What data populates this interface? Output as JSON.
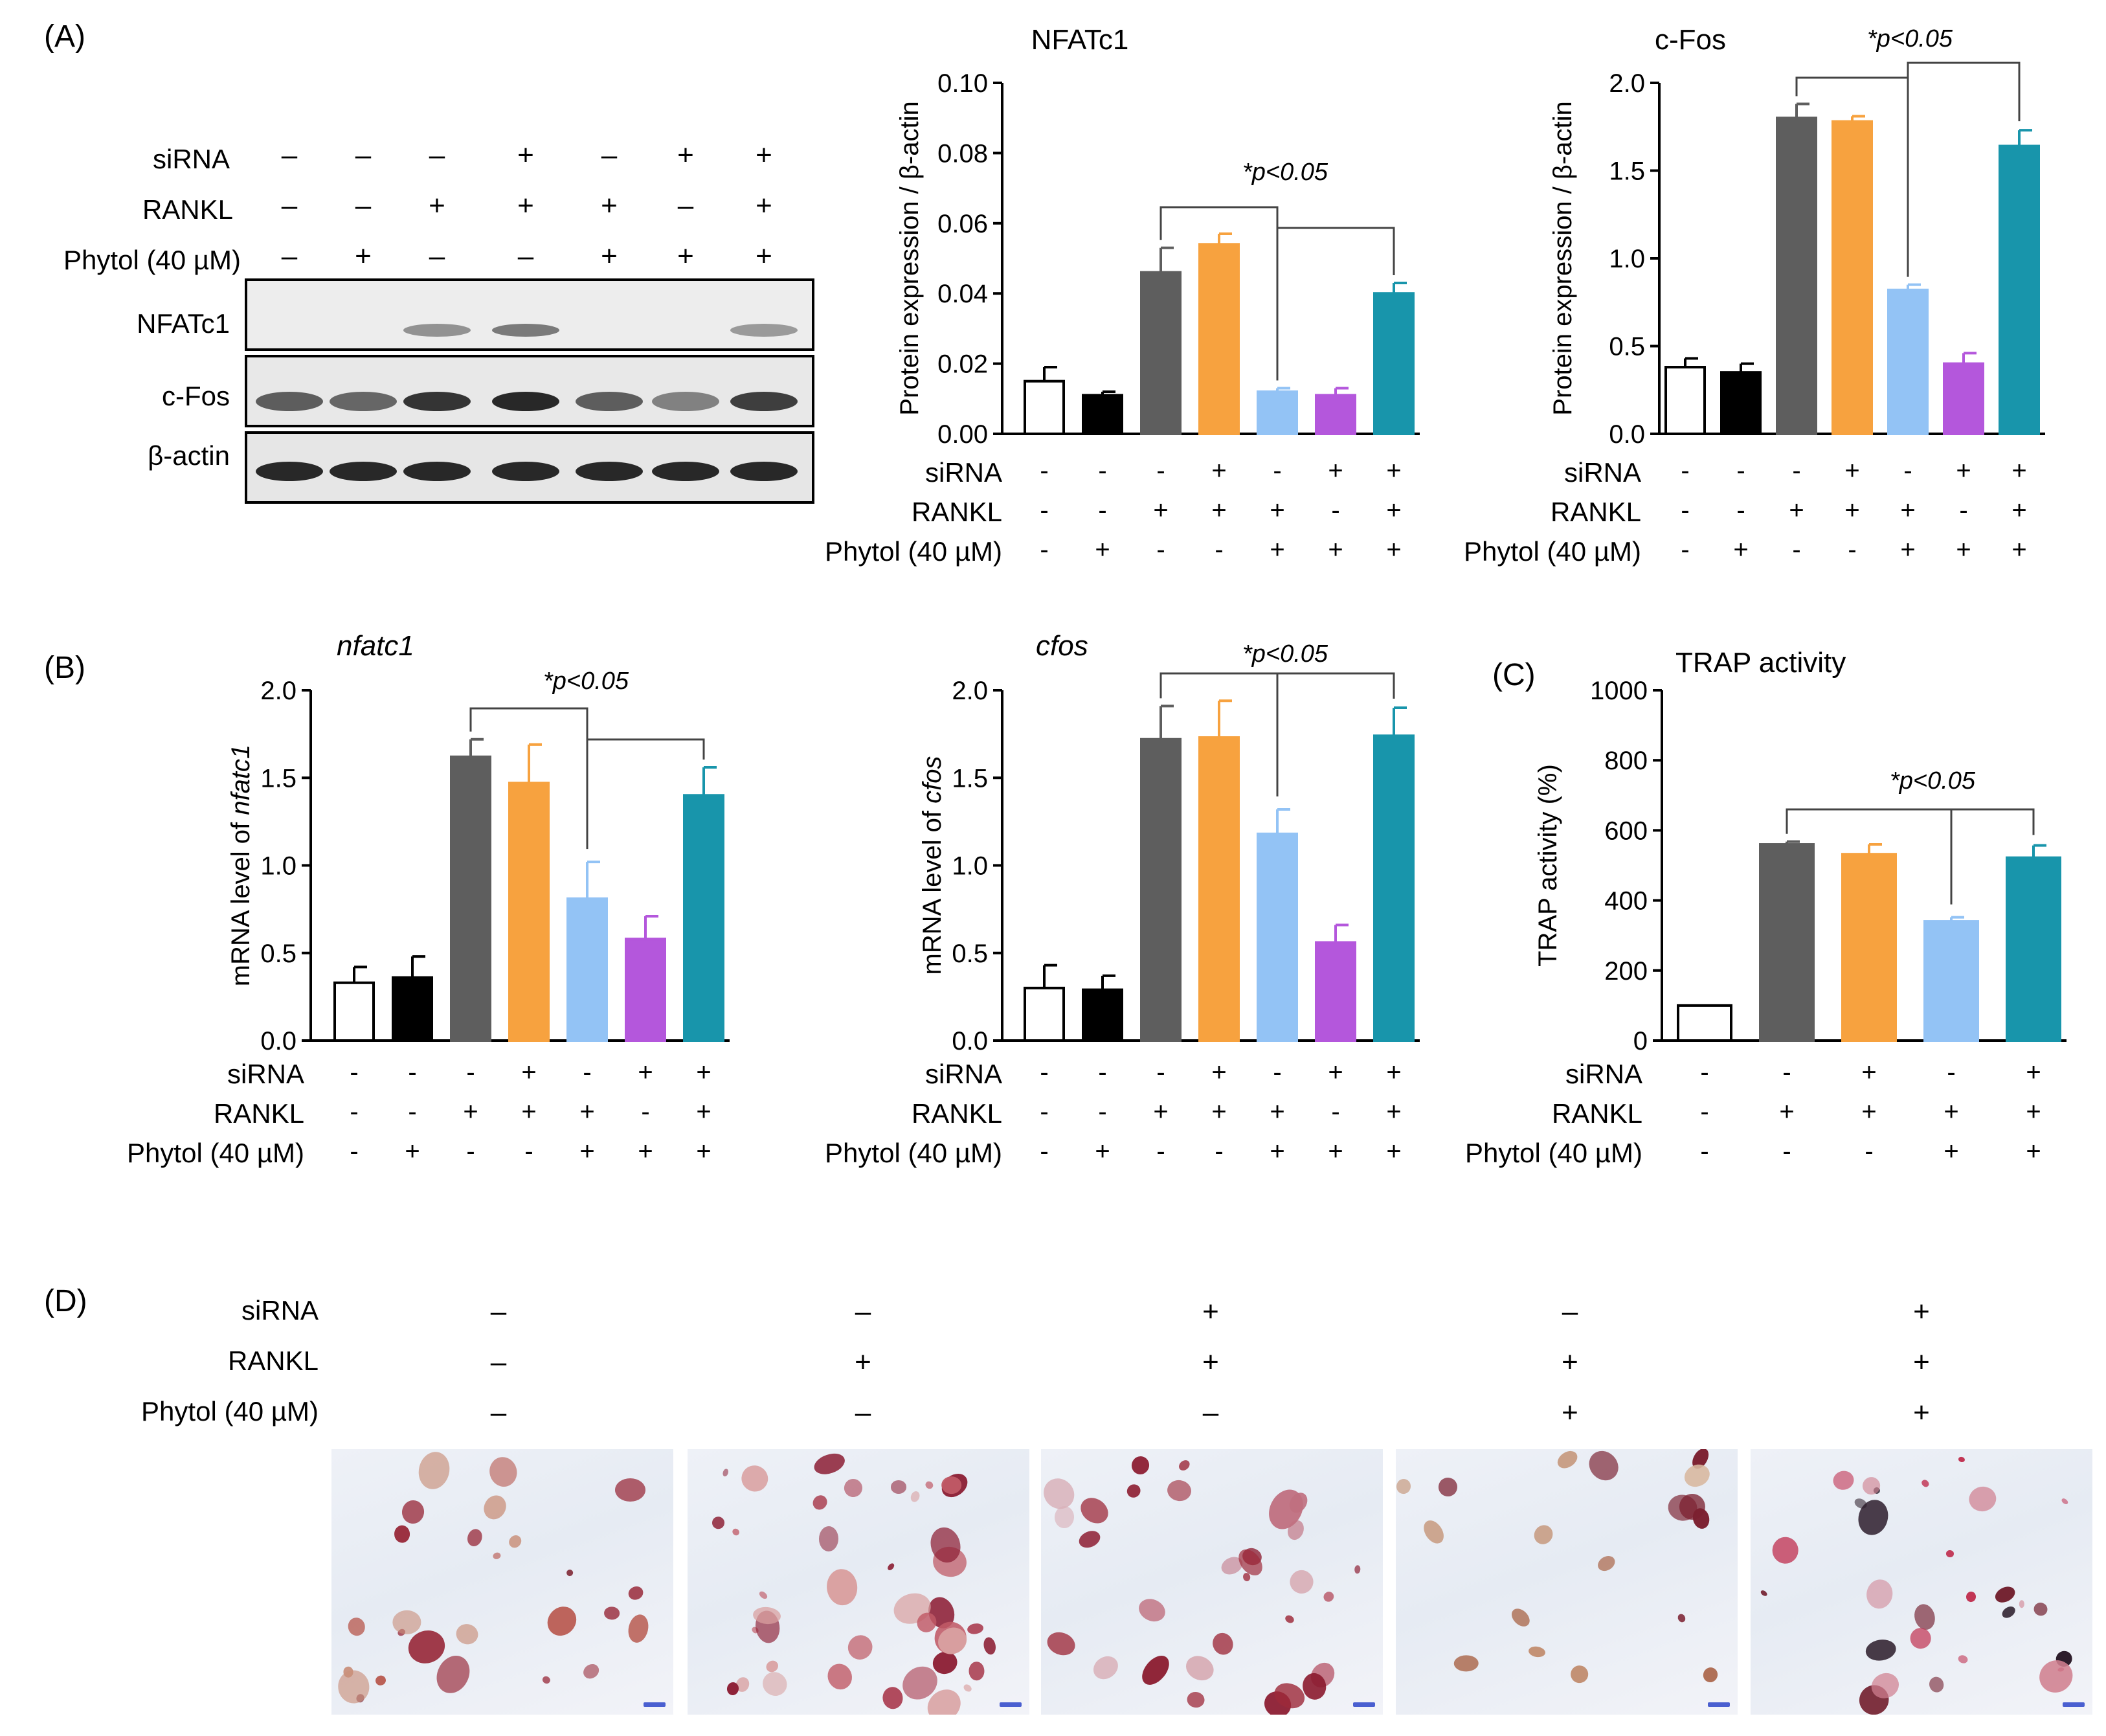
{
  "colors": {
    "group1": "#ffffff",
    "group2": "#000000",
    "group3": "#5e5e5e",
    "group4": "#f7a23f",
    "group5": "#93c3f5",
    "group6": "#b457dc",
    "group7": "#1895ab"
  },
  "cond_labels": {
    "sirna": "siRNA",
    "rankl": "RANKL",
    "phytol": "Phytol (40 µM)"
  },
  "conditions7": {
    "sirna": [
      "-",
      "-",
      "-",
      "+",
      "-",
      "+",
      "+"
    ],
    "rankl": [
      "-",
      "-",
      "+",
      "+",
      "+",
      "-",
      "+"
    ],
    "phytol": [
      "-",
      "+",
      "-",
      "-",
      "+",
      "+",
      "+"
    ]
  },
  "conditions5": {
    "sirna": [
      "-",
      "-",
      "+",
      "-",
      "+"
    ],
    "rankl": [
      "-",
      "+",
      "+",
      "+",
      "+"
    ],
    "phytol": [
      "-",
      "-",
      "-",
      "+",
      "+"
    ]
  },
  "panels": {
    "A": "(A)",
    "B": "(B)",
    "C": "(C)",
    "D": "(D)"
  },
  "blot": {
    "rows": [
      "NFATc1",
      "c-Fos",
      "β-actin"
    ],
    "cond_symbols": {
      "sirna": [
        "–",
        "–",
        "–",
        "+",
        "–",
        "+",
        "+"
      ],
      "rankl": [
        "–",
        "–",
        "+",
        "+",
        "+",
        "–",
        "+"
      ],
      "phytol": [
        "–",
        "+",
        "–",
        "–",
        "+",
        "+",
        "+"
      ]
    },
    "intensity": {
      "NFATc1": [
        0.0,
        0.0,
        0.45,
        0.6,
        0.0,
        0.0,
        0.4
      ],
      "c-Fos": [
        0.75,
        0.7,
        0.95,
        1.0,
        0.75,
        0.55,
        0.9
      ],
      "b-actin": [
        1.0,
        1.0,
        1.0,
        1.0,
        1.0,
        1.0,
        1.0
      ]
    }
  },
  "micro": {
    "cond_symbols": {
      "sirna": [
        "–",
        "–",
        "+",
        "–",
        "+"
      ],
      "rankl": [
        "–",
        "+",
        "+",
        "+",
        "+"
      ],
      "phytol": [
        "–",
        "–",
        "–",
        "+",
        "+"
      ]
    }
  },
  "chart_data": [
    {
      "id": "nfatc1_protein",
      "type": "bar",
      "title": "NFATc1",
      "ylabel": "Protein expression / β-actin",
      "ylim": [
        0,
        0.1
      ],
      "yticks": [
        "0.00",
        "0.02",
        "0.04",
        "0.06",
        "0.08",
        "0.10"
      ],
      "values": [
        0.015,
        0.011,
        0.046,
        0.054,
        0.012,
        0.011,
        0.04
      ],
      "errors": [
        0.004,
        0.001,
        0.007,
        0.003,
        0.001,
        0.002,
        0.003
      ],
      "annotation": "*p<0.05"
    },
    {
      "id": "cfos_protein",
      "type": "bar",
      "title": "c-Fos",
      "ylabel": "Protein expression / β-actin",
      "ylim": [
        0,
        2.0
      ],
      "yticks": [
        "0.0",
        "0.5",
        "1.0",
        "1.5",
        "2.0"
      ],
      "values": [
        0.38,
        0.35,
        1.8,
        1.78,
        0.82,
        0.4,
        1.64
      ],
      "errors": [
        0.05,
        0.05,
        0.08,
        0.03,
        0.03,
        0.06,
        0.09
      ],
      "annotation": "*p<0.05"
    },
    {
      "id": "nfatc1_mrna",
      "type": "bar",
      "title": "nfatc1",
      "ylabel_prefix": "mRNA level of ",
      "ylabel_italic": "nfatc1",
      "ylim": [
        0,
        2.0
      ],
      "yticks": [
        "0.0",
        "0.5",
        "1.0",
        "1.5",
        "2.0"
      ],
      "values": [
        0.33,
        0.36,
        1.62,
        1.47,
        0.81,
        0.58,
        1.4
      ],
      "errors": [
        0.09,
        0.12,
        0.1,
        0.22,
        0.21,
        0.13,
        0.16
      ],
      "annotation": "*p<0.05"
    },
    {
      "id": "cfos_mrna",
      "type": "bar",
      "title": "cfos",
      "ylabel_prefix": "mRNA level of ",
      "ylabel_italic": "cfos",
      "ylim": [
        0,
        2.0
      ],
      "yticks": [
        "0.0",
        "0.5",
        "1.0",
        "1.5",
        "2.0"
      ],
      "values": [
        0.3,
        0.29,
        1.72,
        1.73,
        1.18,
        0.56,
        1.74
      ],
      "errors": [
        0.13,
        0.08,
        0.19,
        0.21,
        0.14,
        0.1,
        0.16
      ],
      "annotation": "*p<0.05"
    },
    {
      "id": "trap_activity",
      "type": "bar",
      "title": "TRAP activity",
      "ylabel": "TRAP activity (%)",
      "ylim": [
        0,
        1000
      ],
      "yticks": [
        "0",
        "200",
        "400",
        "600",
        "800",
        "1000"
      ],
      "values": [
        100,
        560,
        532,
        340,
        522
      ],
      "errors": [
        0,
        8,
        28,
        12,
        35
      ],
      "annotation": "*p<0.05"
    }
  ]
}
